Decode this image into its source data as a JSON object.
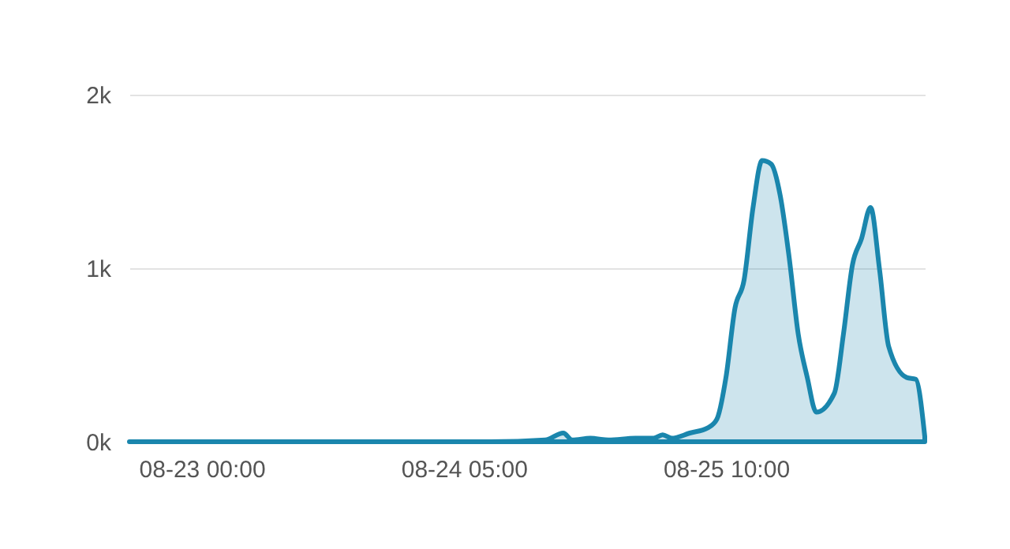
{
  "chart_data": {
    "type": "area",
    "x": [
      "--08-22T16:00",
      "--08-24T08:00",
      "--08-24T14:00",
      "--08-24T16:00",
      "--08-24T17:00",
      "--08-24T19:00",
      "--08-24T21:00",
      "--08-25T00:00",
      "--08-25T02:00",
      "--08-25T03:00",
      "--08-25T04:00",
      "--08-25T06:00",
      "--08-25T08:00",
      "--08-25T09:00",
      "--08-25T10:00",
      "--08-25T11:00",
      "--08-25T12:00",
      "--08-25T13:00",
      "--08-25T14:00",
      "--08-25T15:00",
      "--08-25T16:00",
      "--08-25T17:00",
      "--08-25T18:00",
      "--08-25T19:00",
      "--08-25T20:00",
      "--08-25T22:00",
      "--08-25T23:00",
      "--08-26T00:00",
      "--08-26T01:00",
      "--08-26T02:00",
      "--08-26T03:00",
      "--08-26T04:00",
      "--08-26T06:00",
      "--08-26T07:00",
      "--08-26T08:00"
    ],
    "series": [
      {
        "color": "#1a86ad",
        "values": [
          0,
          0,
          10,
          50,
          10,
          20,
          10,
          20,
          20,
          40,
          20,
          50,
          80,
          130,
          370,
          770,
          930,
          1350,
          1620,
          1600,
          1420,
          1060,
          620,
          370,
          170,
          280,
          620,
          1020,
          1170,
          1350,
          990,
          550,
          370,
          360,
          30
        ]
      }
    ],
    "xlim": [
      "--08-22T16:00",
      "--08-26T08:00"
    ],
    "xticks": [
      {
        "value": "--08-23T00:00",
        "label": "08-23 00:00"
      },
      {
        "value": "--08-24T05:00",
        "label": "08-24 05:00"
      },
      {
        "value": "--08-25T10:00",
        "label": "08-25 10:00"
      }
    ],
    "ylim": [
      0,
      2000
    ],
    "yticks": [
      {
        "value": 0,
        "label": "0k"
      },
      {
        "value": 1000,
        "label": "1k"
      },
      {
        "value": 2000,
        "label": "2k"
      }
    ],
    "grid": "y"
  }
}
